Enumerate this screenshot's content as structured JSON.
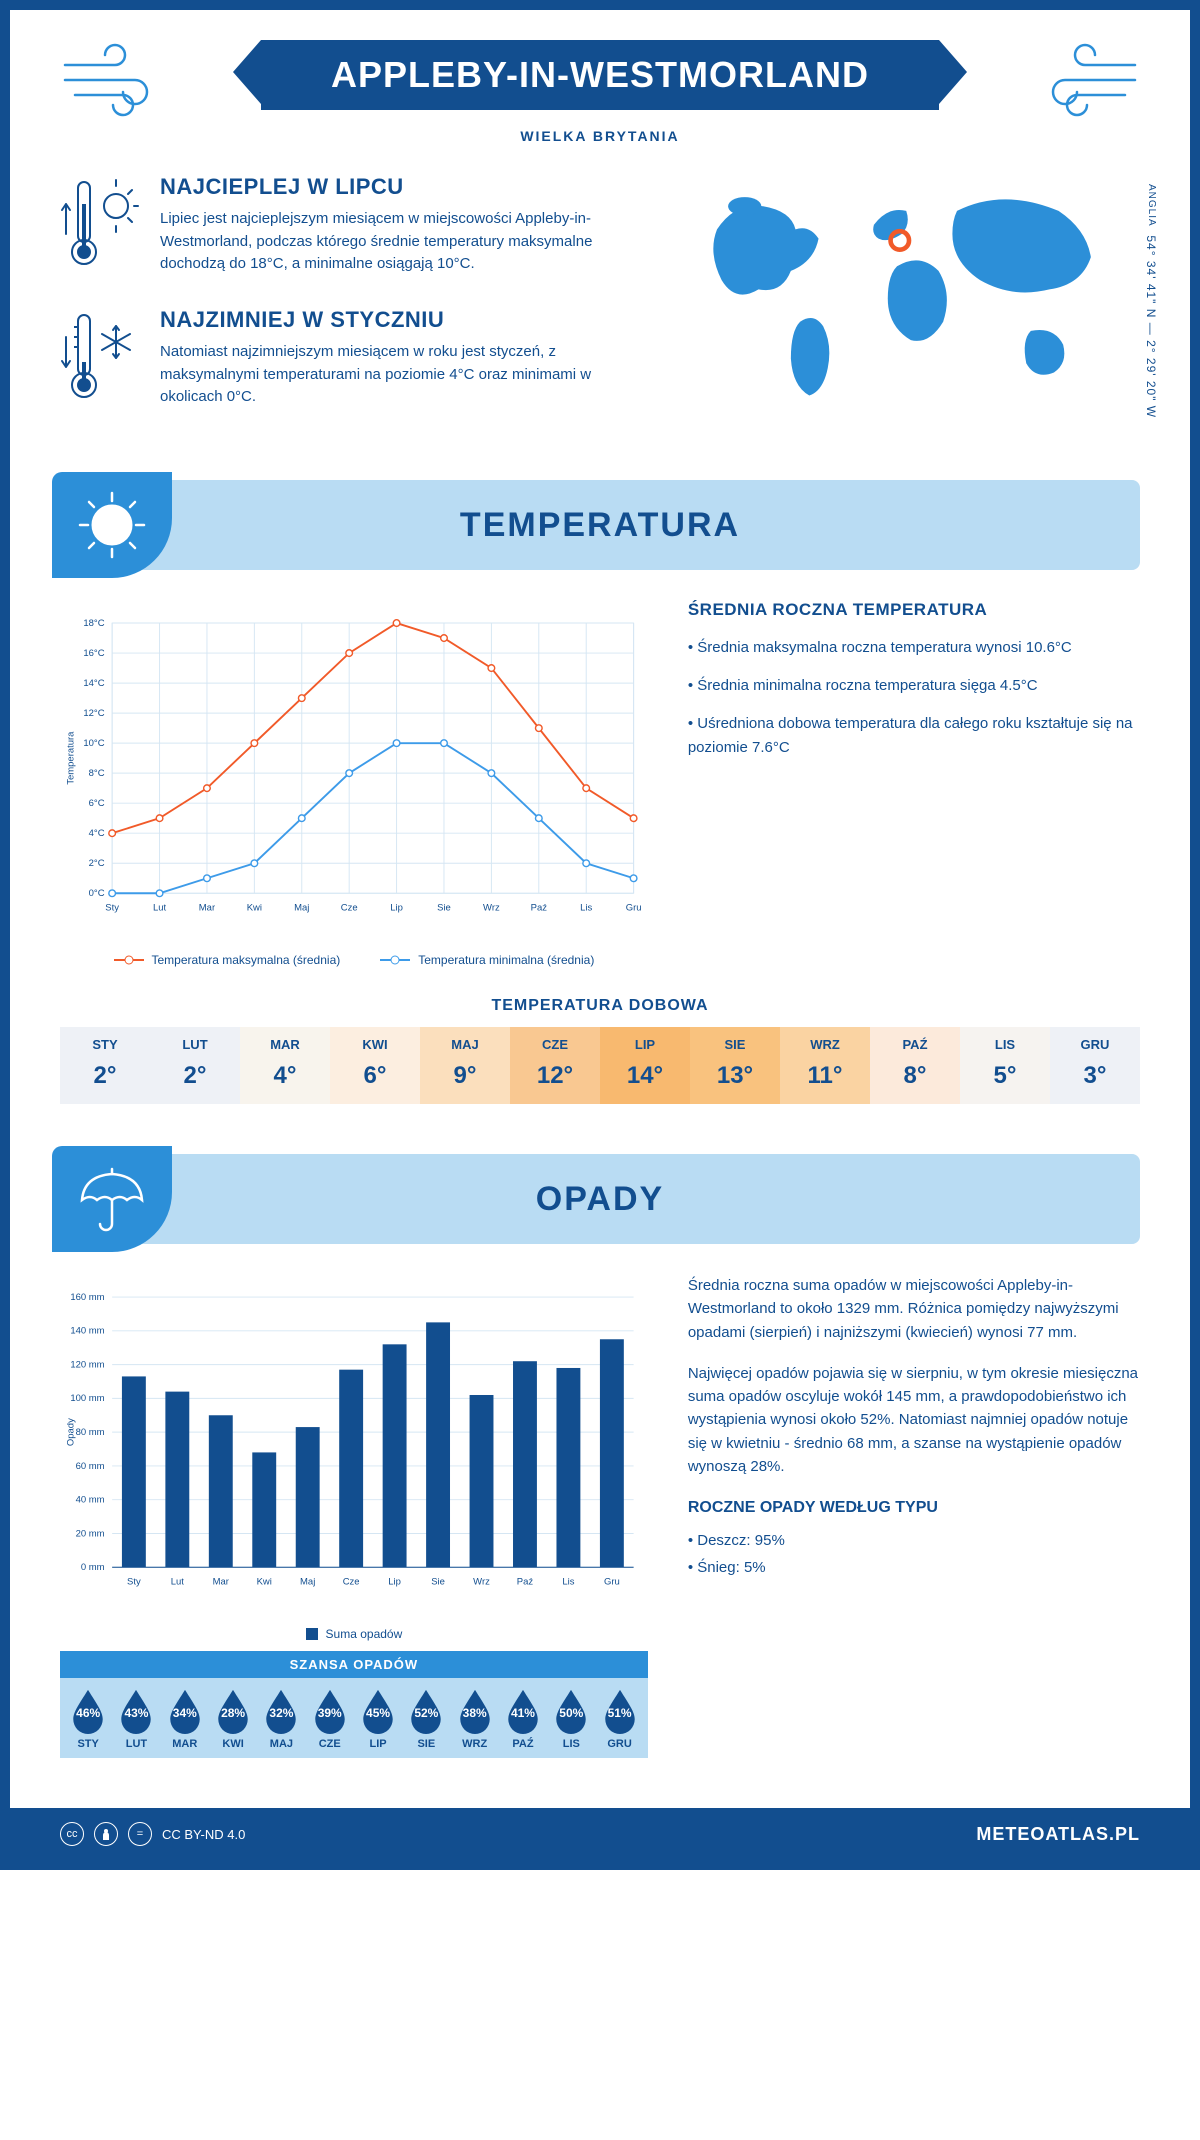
{
  "header": {
    "title": "APPLEBY-IN-WESTMORLAND",
    "subtitle": "WIELKA BRYTANIA"
  },
  "coords": {
    "line": "54° 34' 41\" N — 2° 29' 20\" W",
    "region": "ANGLIA"
  },
  "intro": {
    "hot": {
      "title": "NAJCIEPLEJ W LIPCU",
      "body": "Lipiec jest najcieplejszym miesiącem w miejscowości Appleby-in-Westmorland, podczas którego średnie temperatury maksymalne dochodzą do 18°C, a minimalne osiągają 10°C."
    },
    "cold": {
      "title": "NAJZIMNIEJ W STYCZNIU",
      "body": "Natomiast najzimniejszym miesiącem w roku jest styczeń, z maksymalnymi temperaturami na poziomie 4°C oraz minimami w okolicach 0°C."
    }
  },
  "colors": {
    "primary": "#124e8f",
    "lightblue": "#b9dcf3",
    "midblue": "#2c8fd8",
    "orange": "#f15a29",
    "chartblue": "#3d9be9",
    "grid": "#d5e6f3",
    "bg": "#ffffff"
  },
  "temperature": {
    "section_title": "TEMPERATURA",
    "chart": {
      "type": "line",
      "months": [
        "Sty",
        "Lut",
        "Mar",
        "Kwi",
        "Maj",
        "Cze",
        "Lip",
        "Sie",
        "Wrz",
        "Paź",
        "Lis",
        "Gru"
      ],
      "max_series": [
        4,
        5,
        7,
        10,
        13,
        16,
        18,
        17,
        15,
        11,
        7,
        5
      ],
      "min_series": [
        0,
        0,
        1,
        2,
        5,
        8,
        10,
        10,
        8,
        5,
        2,
        1
      ],
      "ylim": [
        0,
        18
      ],
      "ytick_step": 2,
      "y_unit": "°C",
      "y_label": "Temperatura",
      "legend_max": "Temperatura maksymalna (średnia)",
      "legend_min": "Temperatura minimalna (średnia)",
      "max_color": "#f15a29",
      "min_color": "#3d9be9",
      "line_width": 2,
      "marker": "circle",
      "marker_size": 5,
      "grid_color": "#d5e6f3",
      "background_color": "#ffffff",
      "label_fontsize": 10
    },
    "info": {
      "heading": "ŚREDNIA ROCZNA TEMPERATURA",
      "b1": "• Średnia maksymalna roczna temperatura wynosi 10.6°C",
      "b2": "• Średnia minimalna roczna temperatura sięga 4.5°C",
      "b3": "• Uśredniona dobowa temperatura dla całego roku kształtuje się na poziomie 7.6°C"
    },
    "daily": {
      "title": "TEMPERATURA DOBOWA",
      "months": [
        "STY",
        "LUT",
        "MAR",
        "KWI",
        "MAJ",
        "CZE",
        "LIP",
        "SIE",
        "WRZ",
        "PAŹ",
        "LIS",
        "GRU"
      ],
      "values": [
        "2°",
        "2°",
        "4°",
        "6°",
        "9°",
        "12°",
        "14°",
        "13°",
        "11°",
        "8°",
        "5°",
        "3°"
      ],
      "cell_colors": [
        "#eef1f6",
        "#eef1f6",
        "#f8f4ed",
        "#fceee0",
        "#fbdfbd",
        "#f9c891",
        "#f8b96f",
        "#f9c27e",
        "#fad3a2",
        "#fceadb",
        "#f6f3f0",
        "#eef1f6"
      ]
    }
  },
  "precip": {
    "section_title": "OPADY",
    "chart": {
      "type": "bar",
      "months": [
        "Sty",
        "Lut",
        "Mar",
        "Kwi",
        "Maj",
        "Cze",
        "Lip",
        "Sie",
        "Wrz",
        "Paź",
        "Lis",
        "Gru"
      ],
      "values": [
        113,
        104,
        90,
        68,
        83,
        117,
        132,
        145,
        102,
        122,
        118,
        135
      ],
      "ylim": [
        0,
        160
      ],
      "ytick_step": 20,
      "y_unit": " mm",
      "y_label": "Opady",
      "legend": "Suma opadów",
      "bar_color": "#124e8f",
      "bar_width": 0.55,
      "grid_color": "#d5e6f3",
      "background_color": "#ffffff",
      "label_fontsize": 10
    },
    "info": {
      "p1": "Średnia roczna suma opadów w miejscowości Appleby-in-Westmorland to około 1329 mm. Różnica pomiędzy najwyższymi opadami (sierpień) i najniższymi (kwiecień) wynosi 77 mm.",
      "p2": "Najwięcej opadów pojawia się w sierpniu, w tym okresie miesięczna suma opadów oscyluje wokół 145 mm, a prawdopodobieństwo ich wystąpienia wynosi około 52%. Natomiast najmniej opadów notuje się w kwietniu - średnio 68 mm, a szanse na wystąpienie opadów wynoszą 28%.",
      "type_heading": "ROCZNE OPADY WEDŁUG TYPU",
      "type_rain": "• Deszcz: 95%",
      "type_snow": "• Śnieg: 5%"
    },
    "chance": {
      "title": "SZANSA OPADÓW",
      "months": [
        "STY",
        "LUT",
        "MAR",
        "KWI",
        "MAJ",
        "CZE",
        "LIP",
        "SIE",
        "WRZ",
        "PAŹ",
        "LIS",
        "GRU"
      ],
      "values": [
        "46%",
        "43%",
        "34%",
        "28%",
        "32%",
        "39%",
        "45%",
        "52%",
        "38%",
        "41%",
        "50%",
        "51%"
      ],
      "drop_color": "#124e8f"
    }
  },
  "footer": {
    "license": "CC BY-ND 4.0",
    "site": "METEOATLAS.PL"
  }
}
